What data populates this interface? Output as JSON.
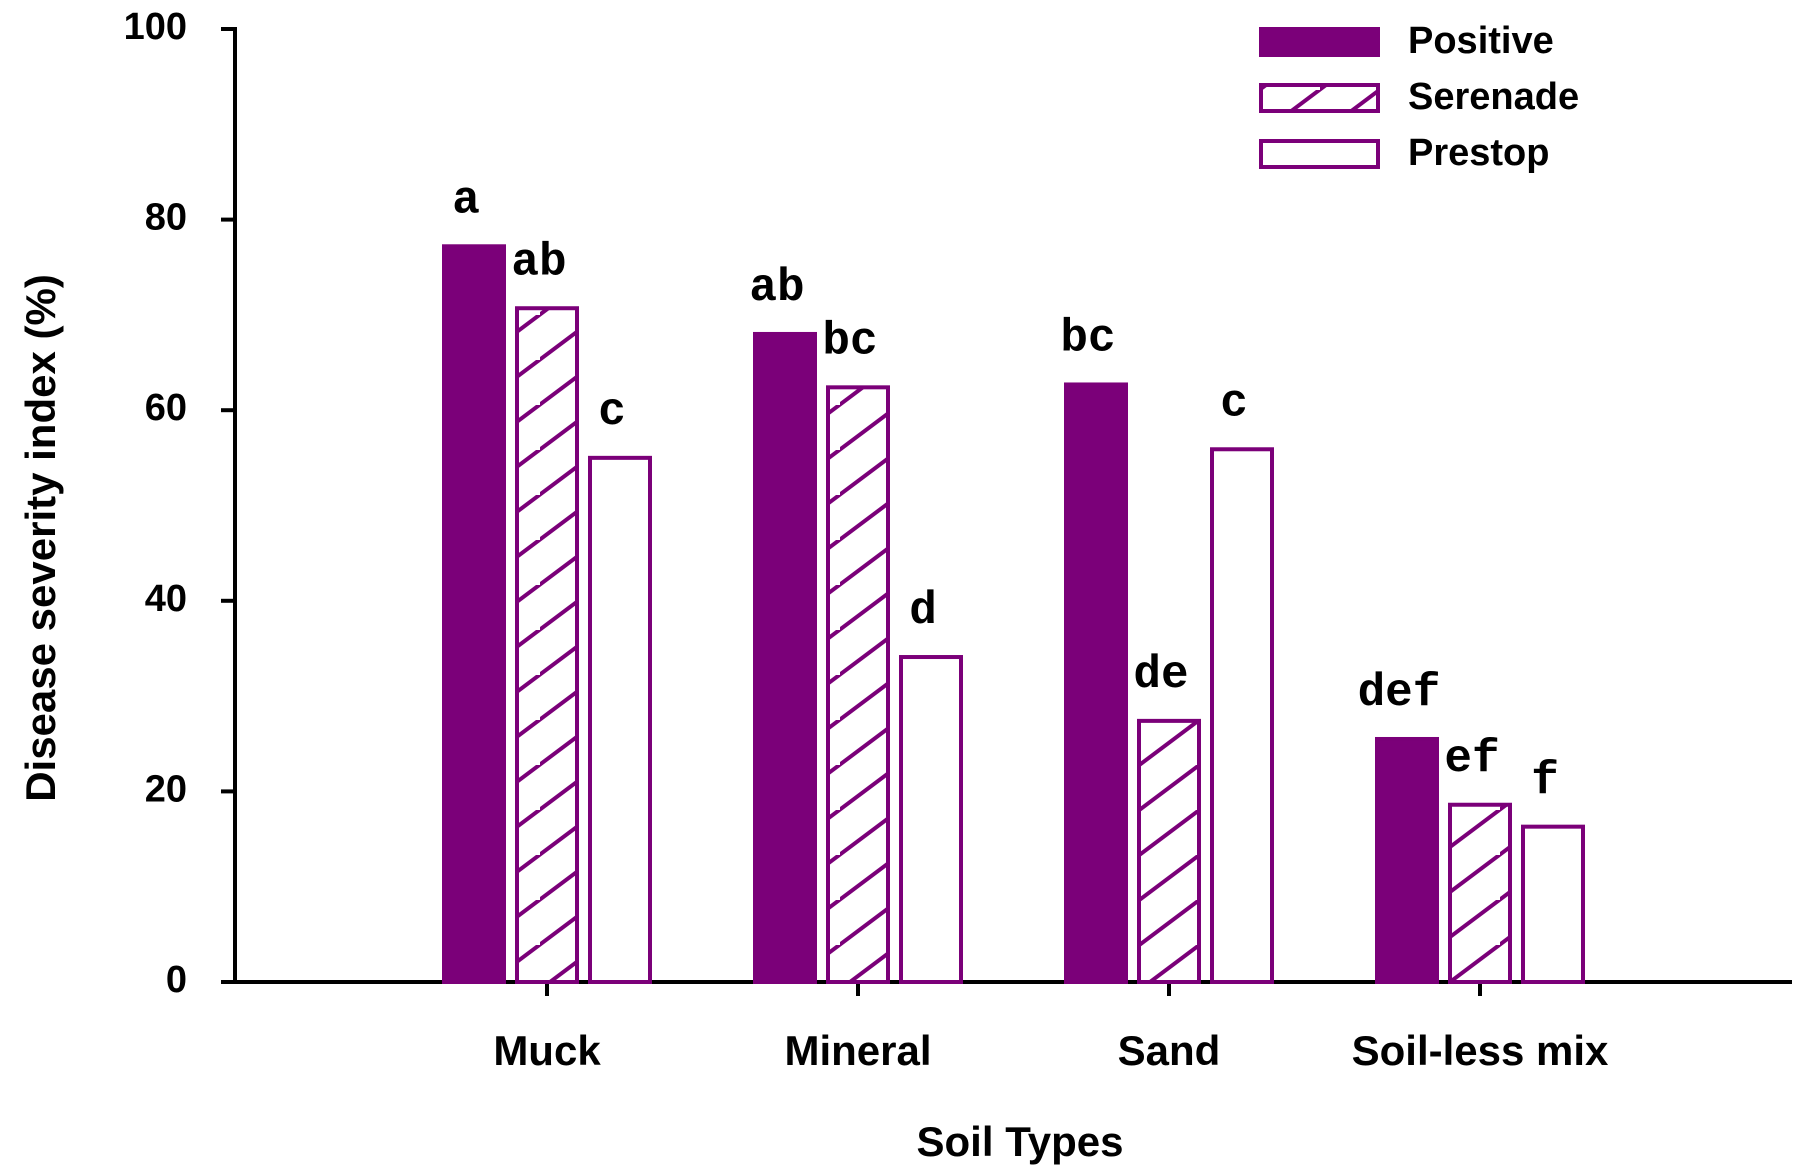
{
  "chart_data": {
    "type": "bar",
    "x_label": "Soil Types",
    "y_label": "Disease severity index (%)",
    "categories": [
      "Muck",
      "Mineral",
      "Sand",
      "Soil-less mix"
    ],
    "series": [
      {
        "name": "Positive",
        "color": "#7b0079",
        "style": "solid",
        "values": [
          77.2,
          68.0,
          62.7,
          25.5
        ],
        "letters": [
          "a",
          "ab",
          "bc",
          "def"
        ]
      },
      {
        "name": "Serenade",
        "color": "#7b0079",
        "style": "hatch",
        "values": [
          70.7,
          62.4,
          27.4,
          18.6
        ],
        "letters": [
          "ab",
          "bc",
          "de",
          "ef"
        ]
      },
      {
        "name": "Prestop",
        "color": "#7b0079",
        "style": "outline",
        "values": [
          55.0,
          34.1,
          55.9,
          16.3
        ],
        "letters": [
          "c",
          "d",
          "c",
          "f"
        ]
      }
    ],
    "ylim": [
      0,
      100
    ],
    "yticks": [
      0,
      20,
      40,
      60,
      80,
      100
    ],
    "legend": "upper right",
    "grid": false
  }
}
